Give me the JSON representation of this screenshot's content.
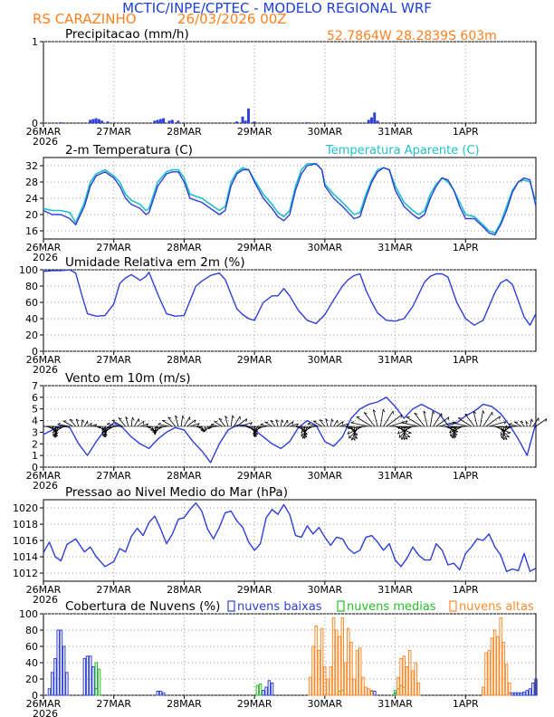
{
  "header": {
    "title": "MCTIC/INPE/CPTEC - MODELO REGIONAL WRF",
    "location": "RS CARAZINHO",
    "run": "26/03/2026 00Z",
    "coords": "52.7864W 28.2839S 603m"
  },
  "axis": {
    "day_ticks": [
      "26MAR",
      "27MAR",
      "28MAR",
      "29MAR",
      "30MAR",
      "31MAR",
      "1APR"
    ],
    "year": "2026",
    "hours": [
      0,
      24,
      48,
      72,
      96,
      120,
      144
    ],
    "xmax": 168
  },
  "colors": {
    "title": "#1e3fd8",
    "orange": "#ff7f1f",
    "line": "#2e3fd8",
    "cyan": "#20c0c8",
    "low": "#2e3fd8",
    "mid": "#22c022",
    "high": "#ff8a2a"
  },
  "chart_data": [
    {
      "type": "bar",
      "title": "Precipitacao (mm/h)",
      "ylim": [
        0,
        1
      ],
      "yticks": [
        "0",
        "1"
      ],
      "x": [
        6,
        16,
        17,
        18,
        19,
        20,
        22,
        38,
        39,
        40,
        41,
        43,
        44,
        46,
        66,
        68,
        69,
        70,
        72,
        90,
        111,
        112,
        113,
        114
      ],
      "values": [
        0.01,
        0.04,
        0.05,
        0.06,
        0.05,
        0.03,
        0.02,
        0.03,
        0.04,
        0.05,
        0.06,
        0.03,
        0.04,
        0.03,
        0.02,
        0.08,
        0.03,
        0.18,
        0.02,
        0.01,
        0.04,
        0.07,
        0.13,
        0.03
      ]
    },
    {
      "type": "line",
      "title": "2-m Temperatura (C)",
      "legend": "Temperatura Aparente (C)",
      "ylim": [
        14,
        34
      ],
      "yticks": [
        "16",
        "20",
        "24",
        "28",
        "32"
      ],
      "series": [
        {
          "name": "2-m Temperatura (C)",
          "x": [
            0,
            3,
            6,
            9,
            11,
            14,
            16,
            18,
            21,
            24,
            26,
            28,
            30,
            33,
            35,
            36,
            39,
            42,
            44,
            46,
            48,
            50,
            52,
            54,
            57,
            60,
            62,
            64,
            66,
            68,
            70,
            72,
            75,
            78,
            80,
            82,
            84,
            86,
            88,
            90,
            93,
            95,
            96,
            99,
            102,
            104,
            106,
            108,
            110,
            112,
            114,
            116,
            118,
            120,
            123,
            126,
            128,
            130,
            132,
            134,
            136,
            138,
            140,
            142,
            144,
            147,
            150,
            152,
            154,
            156,
            158,
            160,
            162,
            164,
            166,
            168
          ],
          "values": [
            21,
            20,
            20,
            19,
            17.5,
            22,
            27,
            29.5,
            30.5,
            29,
            27,
            24,
            22.5,
            21.5,
            20,
            20.5,
            27,
            30,
            30.5,
            30.5,
            28,
            24,
            23.5,
            23,
            21.5,
            20,
            21,
            27,
            30,
            31,
            31,
            28,
            24,
            21.5,
            19.5,
            18.5,
            20,
            26,
            30,
            32,
            32.5,
            31,
            27,
            24,
            22,
            20.5,
            19,
            19.5,
            24,
            28,
            30.5,
            31.5,
            31,
            26,
            22,
            20,
            19,
            20,
            24,
            27,
            29,
            28.5,
            26,
            22,
            19,
            19,
            17,
            15.5,
            15,
            17.5,
            21,
            25.5,
            28,
            29,
            28.5,
            22
          ]
        },
        {
          "name": "Temperatura Aparente (C)",
          "x": [
            0,
            3,
            6,
            9,
            11,
            14,
            16,
            18,
            21,
            24,
            26,
            28,
            30,
            33,
            35,
            36,
            39,
            42,
            44,
            46,
            48,
            50,
            52,
            54,
            57,
            60,
            62,
            64,
            66,
            68,
            70,
            72,
            75,
            78,
            80,
            82,
            84,
            86,
            88,
            90,
            93,
            95,
            96,
            99,
            102,
            104,
            106,
            108,
            110,
            112,
            114,
            116,
            118,
            120,
            123,
            126,
            128,
            130,
            132,
            134,
            136,
            138,
            140,
            142,
            144,
            147,
            150,
            152,
            154,
            156,
            158,
            160,
            162,
            164,
            166,
            168
          ],
          "values": [
            21.5,
            21,
            21,
            20.5,
            18,
            23,
            28,
            30,
            31,
            29.5,
            28,
            25,
            23.5,
            22.5,
            21,
            21.5,
            28,
            30.5,
            31,
            31,
            29,
            25,
            24.5,
            24,
            22.5,
            21,
            22,
            28,
            30.5,
            31.5,
            31,
            28.5,
            25,
            22.5,
            20.5,
            19.5,
            21,
            27,
            31,
            32.5,
            32.5,
            31,
            27.5,
            25,
            23,
            21.5,
            20,
            20.5,
            25,
            28.5,
            31,
            31.5,
            31,
            27,
            23,
            21,
            20,
            21,
            25,
            27.5,
            29,
            28,
            26,
            23,
            20,
            19.5,
            17.5,
            16,
            15.5,
            18,
            22,
            26,
            28,
            28.5,
            28,
            23
          ]
        }
      ]
    },
    {
      "type": "line",
      "title": "Umidade Relativa em 2m (%)",
      "ylim": [
        0,
        100
      ],
      "yticks": [
        "0",
        "20",
        "40",
        "60",
        "80",
        "100"
      ],
      "series": [
        {
          "name": "Umidade Relativa em 2m (%)",
          "x": [
            0,
            3,
            6,
            9,
            11,
            13,
            15,
            18,
            21,
            24,
            26,
            28,
            30,
            33,
            35,
            36,
            39,
            42,
            45,
            48,
            50,
            52,
            54,
            57,
            60,
            62,
            64,
            66,
            68,
            70,
            72,
            75,
            78,
            80,
            82,
            84,
            87,
            90,
            93,
            96,
            99,
            102,
            104,
            106,
            108,
            110,
            112,
            114,
            117,
            120,
            123,
            126,
            128,
            130,
            132,
            134,
            136,
            138,
            141,
            144,
            147,
            150,
            152,
            154,
            156,
            158,
            160,
            162,
            164,
            166,
            168
          ],
          "values": [
            98,
            99,
            99,
            100,
            96,
            70,
            46,
            43,
            44,
            58,
            83,
            90,
            94,
            87,
            92,
            97,
            70,
            46,
            43,
            44,
            62,
            80,
            86,
            93,
            96,
            88,
            70,
            52,
            45,
            40,
            38,
            60,
            68,
            68,
            77,
            68,
            50,
            38,
            34,
            45,
            63,
            80,
            88,
            93,
            95,
            75,
            60,
            47,
            38,
            37,
            40,
            55,
            70,
            85,
            92,
            95,
            95,
            91,
            60,
            40,
            32,
            38,
            55,
            72,
            84,
            88,
            82,
            62,
            42,
            32,
            46
          ]
        }
      ]
    },
    {
      "type": "line",
      "title": "Vento em 10m (m/s)",
      "ylim": [
        0,
        7
      ],
      "yticks": [
        "0",
        "1",
        "2",
        "3",
        "4",
        "5",
        "6",
        "7"
      ],
      "series": [
        {
          "name": "Vento em 10m (m/s)",
          "x": [
            0,
            3,
            6,
            9,
            12,
            15,
            18,
            21,
            24,
            27,
            30,
            33,
            36,
            39,
            42,
            45,
            48,
            51,
            54,
            57,
            60,
            63,
            66,
            69,
            72,
            75,
            78,
            81,
            84,
            87,
            90,
            93,
            96,
            99,
            102,
            105,
            108,
            111,
            114,
            117,
            120,
            123,
            126,
            129,
            132,
            135,
            138,
            141,
            144,
            147,
            150,
            153,
            156,
            159,
            162,
            165,
            168
          ],
          "values": [
            2.8,
            3.2,
            3.6,
            3.4,
            2.0,
            1.0,
            2.2,
            3.2,
            3.8,
            3.4,
            2.6,
            2.0,
            1.6,
            2.4,
            3.0,
            3.4,
            3.2,
            2.2,
            1.4,
            0.4,
            2.0,
            3.2,
            3.6,
            3.6,
            3.2,
            2.6,
            2.0,
            1.6,
            2.2,
            3.4,
            4.0,
            3.6,
            2.2,
            1.8,
            2.6,
            4.2,
            5.0,
            5.4,
            5.6,
            6.0,
            5.2,
            4.2,
            5.0,
            5.4,
            5.0,
            4.6,
            3.6,
            3.8,
            4.4,
            4.8,
            5.4,
            5.2,
            4.6,
            3.6,
            2.4,
            1.0,
            3.8
          ]
        }
      ]
    },
    {
      "type": "line",
      "title": "Pressao ao Nivel Medio do Mar (hPa)",
      "ylim": [
        1011,
        1021
      ],
      "yticks": [
        "1012",
        "1014",
        "1016",
        "1018",
        "1020"
      ],
      "series": [
        {
          "name": "Pressao ao Nivel Medio do Mar (hPa)",
          "x": [
            0,
            2,
            4,
            6,
            8,
            11,
            14,
            16,
            18,
            21,
            24,
            26,
            28,
            30,
            32,
            34,
            36,
            38,
            40,
            42,
            44,
            46,
            48,
            50,
            52,
            54,
            56,
            58,
            60,
            62,
            64,
            66,
            68,
            70,
            72,
            74,
            76,
            78,
            80,
            82,
            84,
            86,
            88,
            90,
            92,
            94,
            96,
            98,
            100,
            102,
            104,
            106,
            108,
            110,
            112,
            114,
            116,
            118,
            120,
            122,
            124,
            126,
            128,
            130,
            132,
            134,
            136,
            138,
            140,
            142,
            144,
            146,
            148,
            150,
            152,
            154,
            156,
            158,
            160,
            162,
            164,
            166,
            168
          ],
          "values": [
            1014.5,
            1015.8,
            1014,
            1013.5,
            1015.5,
            1016.2,
            1014.6,
            1015.2,
            1014,
            1012.8,
            1013.4,
            1015,
            1014.6,
            1016.5,
            1017.5,
            1016.6,
            1018.2,
            1019,
            1017.4,
            1015.6,
            1016.8,
            1018.6,
            1018.8,
            1019.8,
            1020.6,
            1019.6,
            1017.4,
            1016.2,
            1017.6,
            1019.4,
            1019.6,
            1018.4,
            1017.6,
            1015.8,
            1014.8,
            1015.6,
            1018.8,
            1019.8,
            1019.2,
            1020.4,
            1019.2,
            1016.6,
            1016.4,
            1017.8,
            1016.8,
            1017.6,
            1016.4,
            1015.4,
            1016.4,
            1016.2,
            1015,
            1014.4,
            1014.8,
            1016.4,
            1016.6,
            1015.8,
            1014.8,
            1015.6,
            1013.6,
            1012.8,
            1013.8,
            1015.2,
            1014.2,
            1013.6,
            1013.6,
            1015.6,
            1014.8,
            1013,
            1013.2,
            1012.4,
            1014.4,
            1015.2,
            1016.2,
            1016,
            1016.8,
            1015.2,
            1014.2,
            1012.2,
            1012.5,
            1012.3,
            1014.4,
            1012.2,
            1012.6
          ]
        }
      ]
    },
    {
      "type": "bar",
      "title": "Cobertura de Nuvens (%)",
      "ylim": [
        0,
        100
      ],
      "yticks": [
        "0",
        "20",
        "40",
        "60",
        "80",
        "100"
      ],
      "legend": [
        "nuvens baixas",
        "nuvens medias",
        "nuvens altas"
      ],
      "series": [
        {
          "name": "nuvens baixas",
          "x": [
            2,
            3,
            4,
            5,
            6,
            7,
            8,
            14,
            15,
            16,
            17,
            18,
            39,
            40,
            41,
            75,
            76,
            77,
            78,
            112,
            113,
            120,
            159,
            160,
            161,
            162,
            163,
            164,
            165,
            166,
            167,
            168
          ],
          "values": [
            8,
            28,
            45,
            80,
            80,
            60,
            28,
            45,
            48,
            48,
            35,
            8,
            5,
            5,
            3,
            6,
            10,
            18,
            15,
            5,
            5,
            3,
            3,
            3,
            3,
            3,
            3,
            4,
            6,
            8,
            15,
            20
          ]
        },
        {
          "name": "nuvens medias",
          "x": [
            18,
            19,
            73,
            74,
            101,
            102,
            120,
            121,
            122,
            123
          ],
          "values": [
            40,
            32,
            12,
            14,
            5,
            6,
            6,
            8,
            12,
            10
          ]
        },
        {
          "name": "nuvens altas",
          "x": [
            91,
            92,
            93,
            94,
            95,
            96,
            97,
            98,
            99,
            100,
            101,
            102,
            103,
            104,
            105,
            106,
            107,
            108,
            109,
            110,
            111,
            112,
            121,
            122,
            123,
            124,
            125,
            126,
            127,
            128,
            150,
            151,
            152,
            153,
            154,
            155,
            156,
            157,
            158,
            159
          ],
          "values": [
            22,
            60,
            85,
            55,
            82,
            35,
            20,
            35,
            95,
            80,
            72,
            95,
            40,
            82,
            65,
            20,
            55,
            58,
            22,
            10,
            8,
            6,
            22,
            45,
            48,
            35,
            55,
            30,
            40,
            15,
            10,
            52,
            55,
            70,
            80,
            72,
            95,
            65,
            38,
            15
          ]
        }
      ]
    }
  ]
}
